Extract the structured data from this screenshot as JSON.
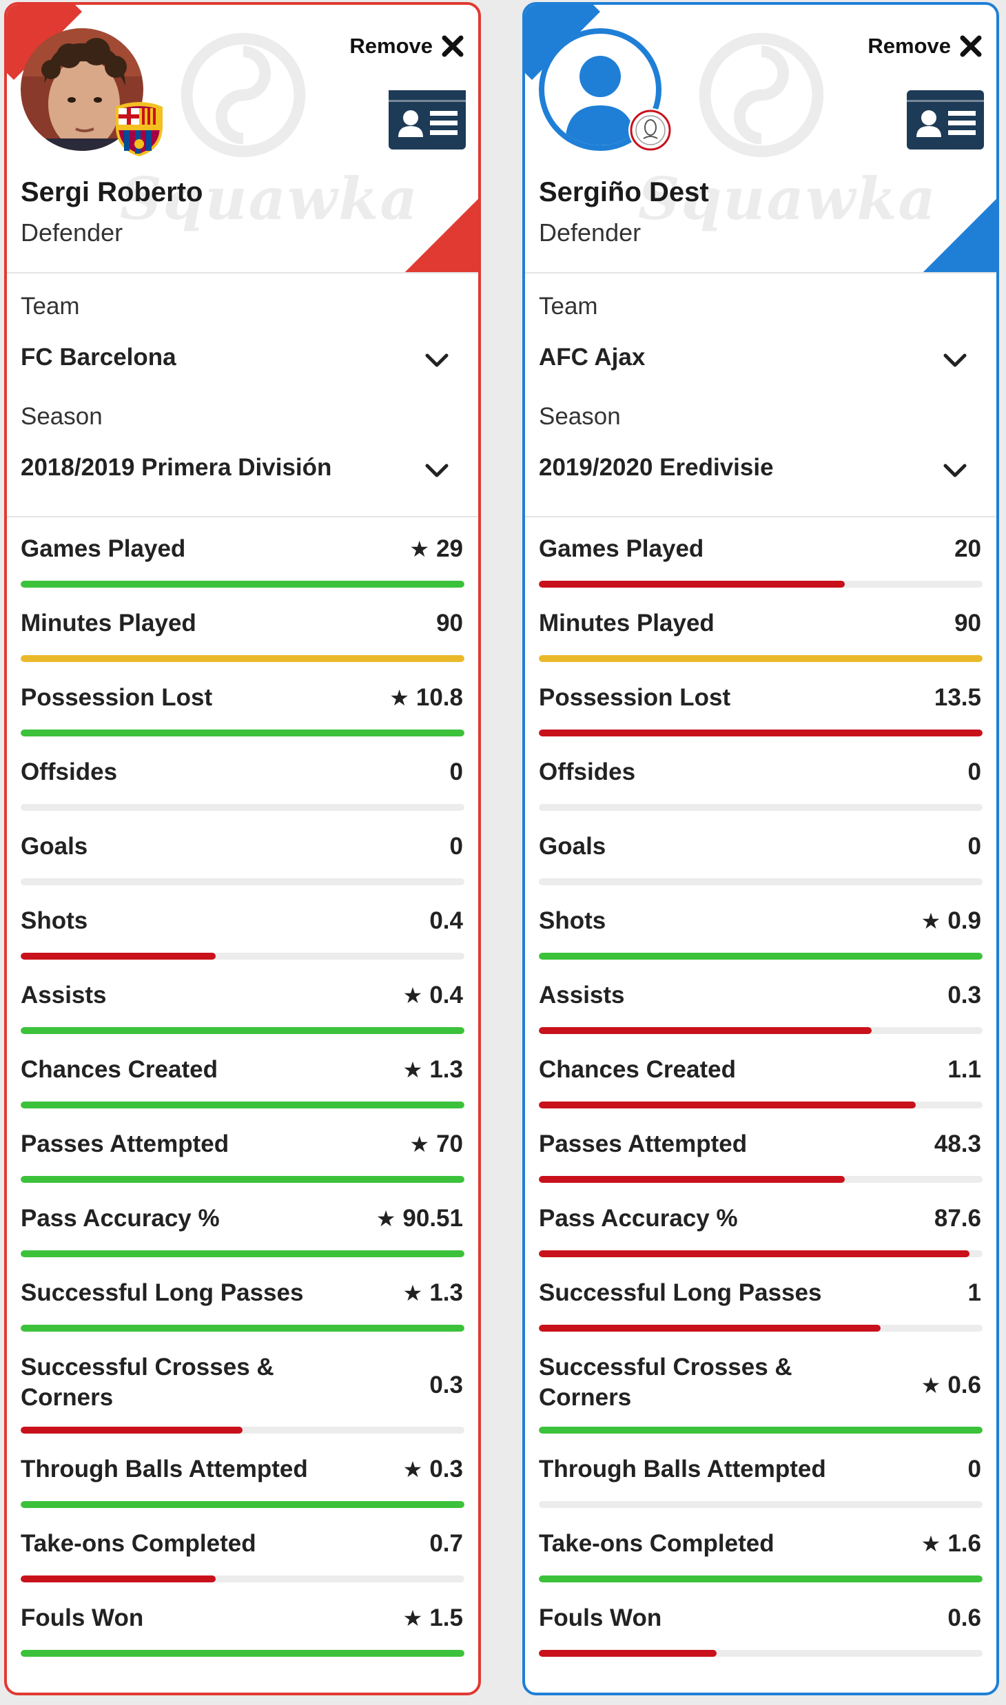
{
  "colors": {
    "left_accent": "#e03a32",
    "right_accent": "#1f7fd6",
    "better": "#3cc13a",
    "worse": "#c8111b",
    "equal": "#eab92b",
    "track": "#ececec"
  },
  "labels": {
    "remove": "Remove",
    "team": "Team",
    "season": "Season",
    "watermark": "Squawka"
  },
  "players": [
    {
      "name": "Sergi Roberto",
      "position": "Defender",
      "team": "FC Barcelona",
      "season": "2018/2019 Primera División",
      "stats": [
        {
          "label": "Games Played",
          "value": "29",
          "star": true,
          "fill": 1.0,
          "rating": "better"
        },
        {
          "label": "Minutes Played",
          "value": "90",
          "star": false,
          "fill": 1.0,
          "rating": "equal"
        },
        {
          "label": "Possession Lost",
          "value": "10.8",
          "star": true,
          "fill": 1.0,
          "rating": "better"
        },
        {
          "label": "Offsides",
          "value": "0",
          "star": false,
          "fill": 0,
          "rating": "none"
        },
        {
          "label": "Goals",
          "value": "0",
          "star": false,
          "fill": 0,
          "rating": "none"
        },
        {
          "label": "Shots",
          "value": "0.4",
          "star": false,
          "fill": 0.44,
          "rating": "worse"
        },
        {
          "label": "Assists",
          "value": "0.4",
          "star": true,
          "fill": 1.0,
          "rating": "better"
        },
        {
          "label": "Chances Created",
          "value": "1.3",
          "star": true,
          "fill": 1.0,
          "rating": "better"
        },
        {
          "label": "Passes Attempted",
          "value": "70",
          "star": true,
          "fill": 1.0,
          "rating": "better"
        },
        {
          "label": "Pass Accuracy %",
          "value": "90.51",
          "star": true,
          "fill": 1.0,
          "rating": "better"
        },
        {
          "label": "Successful Long Passes",
          "value": "1.3",
          "star": true,
          "fill": 1.0,
          "rating": "better"
        },
        {
          "label": "Successful Crosses & Corners",
          "value": "0.3",
          "star": false,
          "fill": 0.5,
          "rating": "worse",
          "tall": true
        },
        {
          "label": "Through Balls Attempted",
          "value": "0.3",
          "star": true,
          "fill": 1.0,
          "rating": "better"
        },
        {
          "label": "Take-ons Completed",
          "value": "0.7",
          "star": false,
          "fill": 0.44,
          "rating": "worse"
        },
        {
          "label": "Fouls Won",
          "value": "1.5",
          "star": true,
          "fill": 1.0,
          "rating": "better"
        }
      ]
    },
    {
      "name": "Sergiño Dest",
      "position": "Defender",
      "team": "AFC Ajax",
      "season": "2019/2020 Eredivisie",
      "stats": [
        {
          "label": "Games Played",
          "value": "20",
          "star": false,
          "fill": 0.69,
          "rating": "worse"
        },
        {
          "label": "Minutes Played",
          "value": "90",
          "star": false,
          "fill": 1.0,
          "rating": "equal"
        },
        {
          "label": "Possession Lost",
          "value": "13.5",
          "star": false,
          "fill": 1.0,
          "rating": "worse"
        },
        {
          "label": "Offsides",
          "value": "0",
          "star": false,
          "fill": 0,
          "rating": "none"
        },
        {
          "label": "Goals",
          "value": "0",
          "star": false,
          "fill": 0,
          "rating": "none"
        },
        {
          "label": "Shots",
          "value": "0.9",
          "star": true,
          "fill": 1.0,
          "rating": "better"
        },
        {
          "label": "Assists",
          "value": "0.3",
          "star": false,
          "fill": 0.75,
          "rating": "worse"
        },
        {
          "label": "Chances Created",
          "value": "1.1",
          "star": false,
          "fill": 0.85,
          "rating": "worse"
        },
        {
          "label": "Passes Attempted",
          "value": "48.3",
          "star": false,
          "fill": 0.69,
          "rating": "worse"
        },
        {
          "label": "Pass Accuracy %",
          "value": "87.6",
          "star": false,
          "fill": 0.97,
          "rating": "worse"
        },
        {
          "label": "Successful Long Passes",
          "value": "1",
          "star": false,
          "fill": 0.77,
          "rating": "worse"
        },
        {
          "label": "Successful Crosses & Corners",
          "value": "0.6",
          "star": true,
          "fill": 1.0,
          "rating": "better",
          "tall": true
        },
        {
          "label": "Through Balls Attempted",
          "value": "0",
          "star": false,
          "fill": 0,
          "rating": "none"
        },
        {
          "label": "Take-ons Completed",
          "value": "1.6",
          "star": true,
          "fill": 1.0,
          "rating": "better"
        },
        {
          "label": "Fouls Won",
          "value": "0.6",
          "star": false,
          "fill": 0.4,
          "rating": "worse"
        }
      ]
    }
  ]
}
